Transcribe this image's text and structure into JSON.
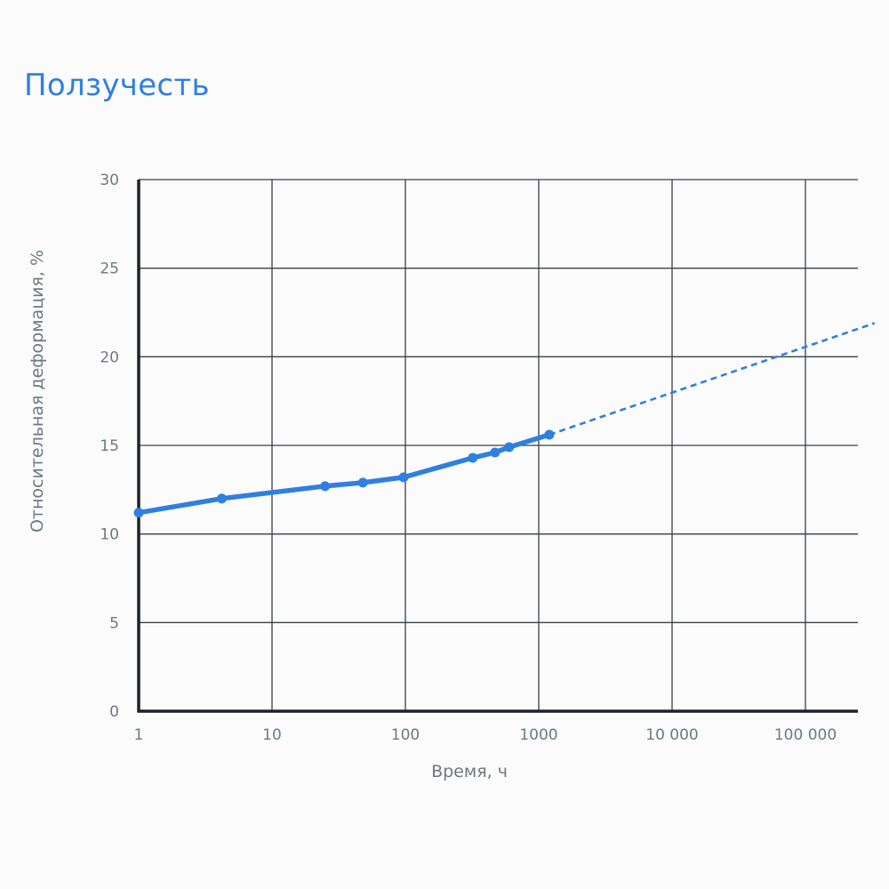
{
  "title": "Ползучесть",
  "chart_data": {
    "type": "line",
    "title": "Ползучесть",
    "xlabel": "Время, ч",
    "ylabel": "Относительная деформация, %",
    "x_scale": "log",
    "xlim": [
      1,
      300000
    ],
    "ylim": [
      0,
      30
    ],
    "x_ticks": [
      1,
      10,
      100,
      1000,
      10000,
      100000
    ],
    "x_tick_labels": [
      "1",
      "10",
      "100",
      "1000",
      "10 000",
      "100 000"
    ],
    "y_ticks": [
      0,
      5,
      10,
      15,
      20,
      25,
      30
    ],
    "y_tick_labels": [
      "0",
      "5",
      "10",
      "15",
      "20",
      "25",
      "30"
    ],
    "grid": true,
    "series": [
      {
        "style": "solid",
        "markers": true,
        "color": "#2f7fe0",
        "x": [
          1,
          4.2,
          25,
          48,
          97,
          320,
          470,
          600,
          1200
        ],
        "y": [
          11.2,
          12.0,
          12.7,
          12.9,
          13.2,
          14.3,
          14.6,
          14.9,
          15.6
        ]
      },
      {
        "style": "dashed",
        "markers": false,
        "color": "#2f7fe0",
        "x": [
          1200,
          330000
        ],
        "y": [
          15.6,
          21.9
        ]
      }
    ]
  }
}
